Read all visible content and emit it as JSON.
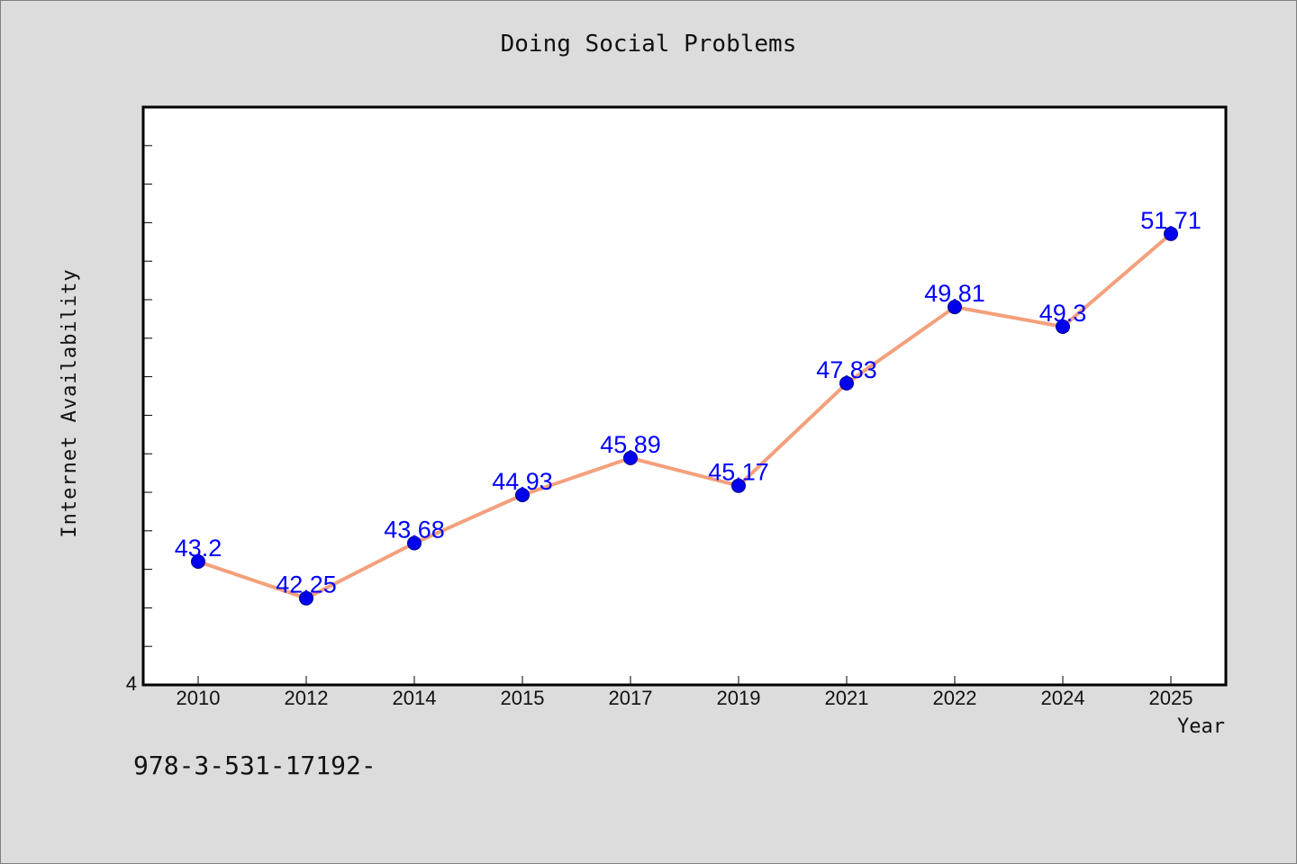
{
  "chart_data": {
    "type": "line",
    "title": "Doing Social Problems",
    "xlabel": "Year",
    "ylabel": "Internet Availability",
    "categories": [
      "2010",
      "2012",
      "2014",
      "2015",
      "2017",
      "2019",
      "2021",
      "2022",
      "2024",
      "2025"
    ],
    "series": [
      {
        "values": [
          43.2,
          42.25,
          43.68,
          44.93,
          45.89,
          45.17,
          47.83,
          49.81,
          49.3,
          51.71
        ],
        "labels": [
          "43.2",
          "42.25",
          "43.68",
          "44.93",
          "45.89",
          "45.17",
          "47.83",
          "49.81",
          "49.3",
          "51.71"
        ],
        "line_color": "#f4a07c",
        "marker_color": "#0000ee"
      }
    ],
    "y_tick_label": "4",
    "ylim": [
      40,
      55
    ],
    "grid": false,
    "legend": "none",
    "label_color": "#0000ff"
  },
  "footnote": "978-3-531-17192-"
}
